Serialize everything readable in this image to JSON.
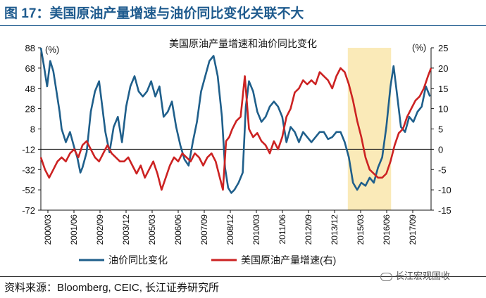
{
  "figure_title": "图 17：美国原油产量增速与油价同比变化关联不大",
  "source_text": "资料来源：Bloomberg, CEIC, 长江证券研究所",
  "watermark_text": "长江宏观固收",
  "colors": {
    "oil": "#1f5f8b",
    "production": "#cc2222",
    "highlight": "#faeab8",
    "title": "#1f5b8e"
  },
  "chart_data": {
    "type": "line",
    "title": "美国原油产量增速和油价同比变化",
    "left_axis": {
      "unit": "(%)",
      "min": -72,
      "max": 88,
      "ticks": [
        88,
        68,
        48,
        28,
        8,
        -12,
        -32,
        -52,
        -72
      ]
    },
    "right_axis": {
      "unit": "(%)",
      "min": -15,
      "max": 25,
      "ticks": [
        25,
        20,
        15,
        10,
        5,
        0,
        -5,
        -10,
        -15
      ]
    },
    "x_ticks": [
      "2000/03",
      "2001/06",
      "2002/09",
      "2003/12",
      "2005/03",
      "2006/06",
      "2007/09",
      "2008/12",
      "2010/03",
      "2011/06",
      "2012/09",
      "2013/12",
      "2015/03",
      "2016/06",
      "2017/09"
    ],
    "x_range": [
      2000.0,
      2018.75
    ],
    "highlight_range": [
      2014.75,
      2016.83
    ],
    "series": [
      {
        "name": "油价同比变化",
        "axis": "left",
        "x": [
          2000.0,
          2000.15,
          2000.3,
          2000.45,
          2000.6,
          2000.75,
          2000.9,
          2001.0,
          2001.2,
          2001.4,
          2001.6,
          2001.75,
          2001.9,
          2002.0,
          2002.2,
          2002.4,
          2002.6,
          2002.8,
          2002.95,
          2003.1,
          2003.3,
          2003.5,
          2003.7,
          2003.9,
          2004.1,
          2004.3,
          2004.5,
          2004.7,
          2004.9,
          2005.1,
          2005.3,
          2005.5,
          2005.7,
          2005.9,
          2006.1,
          2006.3,
          2006.5,
          2006.7,
          2006.9,
          2007.1,
          2007.3,
          2007.5,
          2007.7,
          2007.9,
          2008.1,
          2008.3,
          2008.5,
          2008.7,
          2008.85,
          2009.0,
          2009.15,
          2009.3,
          2009.5,
          2009.7,
          2009.85,
          2010.0,
          2010.2,
          2010.4,
          2010.6,
          2010.8,
          2011.0,
          2011.2,
          2011.4,
          2011.6,
          2011.8,
          2012.0,
          2012.2,
          2012.4,
          2012.6,
          2012.8,
          2013.0,
          2013.2,
          2013.4,
          2013.6,
          2013.8,
          2014.0,
          2014.2,
          2014.4,
          2014.6,
          2014.8,
          2015.0,
          2015.2,
          2015.4,
          2015.6,
          2015.8,
          2016.0,
          2016.2,
          2016.4,
          2016.6,
          2016.8,
          2016.95,
          2017.1,
          2017.3,
          2017.5,
          2017.7,
          2017.9,
          2018.1,
          2018.3,
          2018.5,
          2018.7
        ],
        "values": [
          88,
          70,
          50,
          75,
          65,
          45,
          25,
          8,
          -5,
          5,
          -10,
          -20,
          -35,
          -30,
          -15,
          25,
          45,
          55,
          30,
          5,
          -15,
          10,
          20,
          -5,
          30,
          50,
          60,
          45,
          40,
          45,
          55,
          40,
          50,
          20,
          25,
          35,
          10,
          -8,
          -22,
          -28,
          -5,
          15,
          45,
          60,
          75,
          80,
          60,
          20,
          -30,
          -50,
          -55,
          -52,
          -45,
          -35,
          30,
          55,
          45,
          25,
          15,
          20,
          30,
          35,
          30,
          20,
          -5,
          10,
          5,
          -5,
          5,
          0,
          -5,
          0,
          5,
          5,
          -2,
          0,
          5,
          5,
          -5,
          -20,
          -45,
          -52,
          -45,
          -48,
          -40,
          -45,
          -30,
          -20,
          10,
          50,
          70,
          45,
          10,
          5,
          20,
          15,
          25,
          30,
          50,
          40
        ]
      },
      {
        "name": "美国原油产量增速(右)",
        "axis": "right",
        "x": [
          2000.0,
          2000.2,
          2000.4,
          2000.6,
          2000.8,
          2001.0,
          2001.2,
          2001.4,
          2001.6,
          2001.8,
          2002.0,
          2002.2,
          2002.4,
          2002.6,
          2002.8,
          2003.0,
          2003.2,
          2003.4,
          2003.6,
          2003.8,
          2004.0,
          2004.2,
          2004.4,
          2004.6,
          2004.8,
          2005.0,
          2005.2,
          2005.4,
          2005.6,
          2005.8,
          2006.0,
          2006.2,
          2006.4,
          2006.6,
          2006.8,
          2007.0,
          2007.2,
          2007.4,
          2007.6,
          2007.8,
          2008.0,
          2008.2,
          2008.4,
          2008.6,
          2008.75,
          2008.9,
          2009.05,
          2009.2,
          2009.4,
          2009.6,
          2009.8,
          2010.0,
          2010.2,
          2010.4,
          2010.6,
          2010.8,
          2011.0,
          2011.2,
          2011.4,
          2011.6,
          2011.8,
          2012.0,
          2012.2,
          2012.4,
          2012.6,
          2012.8,
          2013.0,
          2013.2,
          2013.4,
          2013.6,
          2013.8,
          2014.0,
          2014.2,
          2014.4,
          2014.6,
          2014.8,
          2015.0,
          2015.2,
          2015.4,
          2015.6,
          2015.8,
          2016.0,
          2016.2,
          2016.4,
          2016.6,
          2016.8,
          2017.0,
          2017.2,
          2017.4,
          2017.6,
          2017.8,
          2018.0,
          2018.2,
          2018.4,
          2018.6,
          2018.75
        ],
        "values": [
          -2,
          -5,
          -7,
          -5,
          -3,
          -2,
          -3,
          -1,
          0,
          -2,
          1,
          2,
          0,
          -2,
          -3,
          -1,
          1,
          -1,
          -2,
          -3,
          -3,
          -2,
          -4,
          -6,
          -4,
          -7,
          -5,
          -3,
          -6,
          -10,
          -7,
          -4,
          -2,
          -3,
          -1,
          -2,
          -3,
          -1,
          -2,
          -4,
          -2,
          -1,
          -3,
          -7,
          -10,
          2,
          3,
          5,
          7,
          8,
          18,
          5,
          3,
          4,
          2,
          1,
          -1,
          2,
          0,
          3,
          8,
          10,
          14,
          15,
          17,
          16,
          17,
          16,
          19,
          18,
          17,
          15,
          18,
          20,
          19,
          16,
          12,
          7,
          3,
          -2,
          -5,
          -6,
          -7,
          -7,
          -6,
          -3,
          1,
          4,
          5,
          8,
          10,
          12,
          13,
          15,
          18,
          20
        ]
      }
    ]
  }
}
